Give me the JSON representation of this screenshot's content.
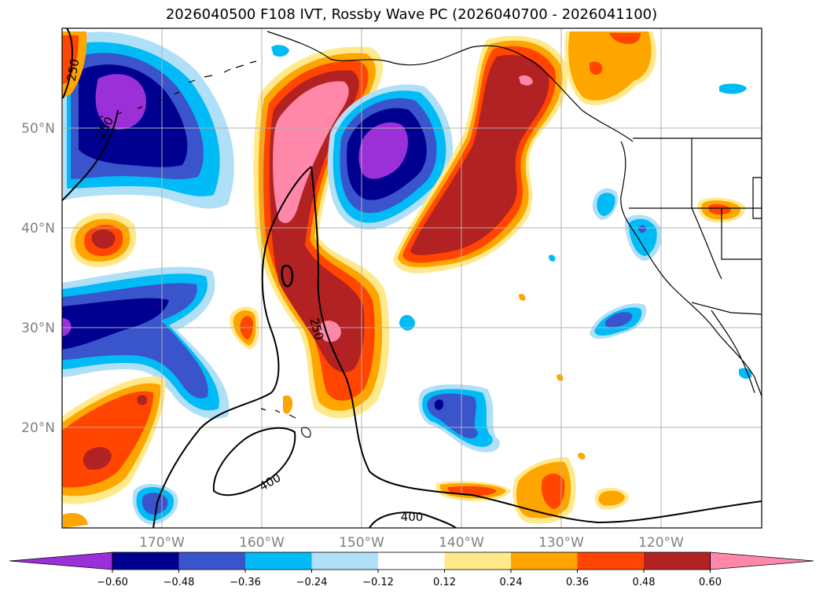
{
  "title": "2026040500 F108 IVT, Rossby Wave PC (2026040700 - 2026041100)",
  "lat_labels": [
    "50°N",
    "40°N",
    "30°N",
    "20°N"
  ],
  "lon_labels": [
    "170°W",
    "160°W",
    "150°W",
    "140°W",
    "130°W",
    "120°W"
  ],
  "colorbar": {
    "tick_labels": [
      "−0.60",
      "−0.48",
      "−0.36",
      "−0.24",
      "−0.12",
      "0.12",
      "0.24",
      "0.36",
      "0.48",
      "0.60"
    ],
    "colors": [
      "#9b30d9",
      "#000090",
      "#3a55cc",
      "#00bbf5",
      "#b0e0f8",
      "#ffffff",
      "#ffe98a",
      "#ffa500",
      "#ff4500",
      "#b22222",
      "#ff88aa"
    ]
  },
  "contour_labels": {
    "c1": "250",
    "c2": "250",
    "c3": "250",
    "c4": "400",
    "c5": "400"
  }
}
